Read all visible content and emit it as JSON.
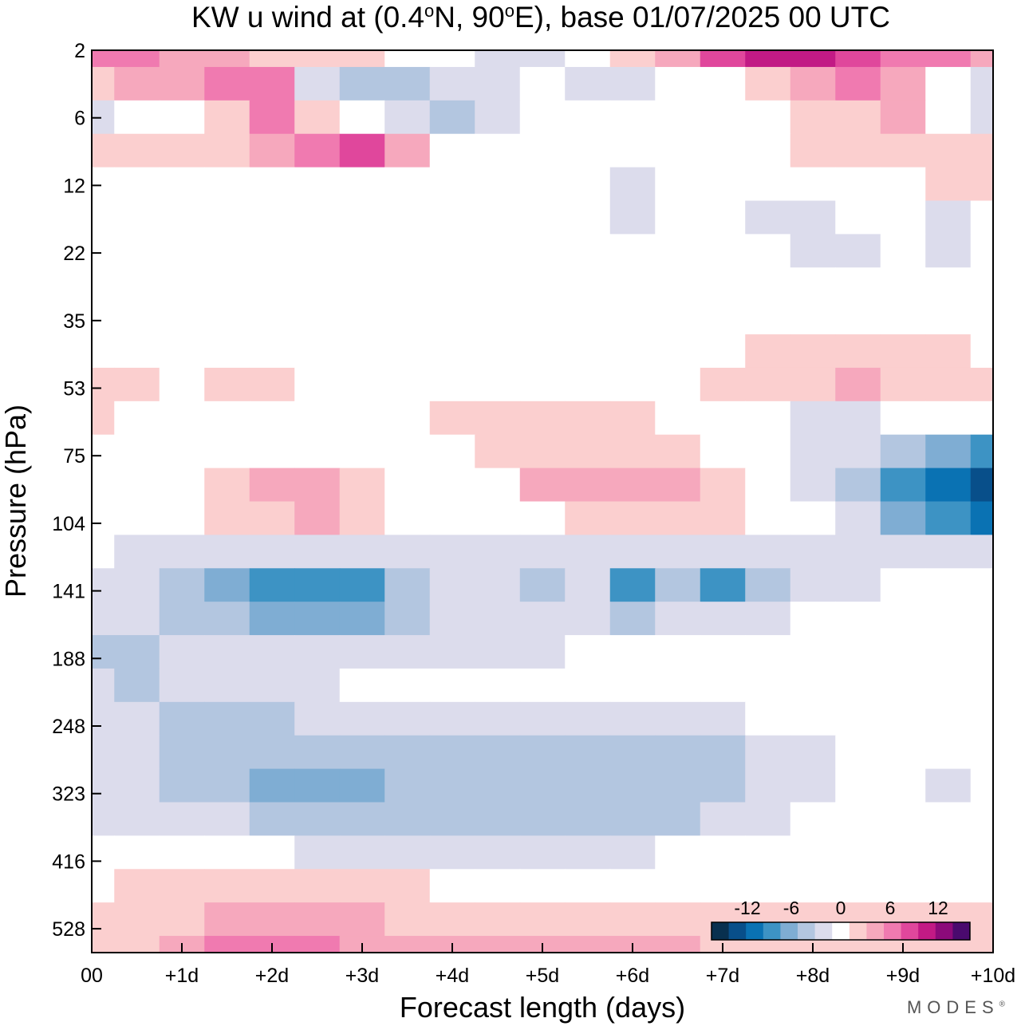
{
  "chart_data": {
    "type": "heatmap",
    "title_main": "KW u wind at (0.4",
    "title_lon": "N, 90",
    "title_tail": "E),  base 01/07/2025  00 UTC",
    "degree_symbol": "o",
    "xlabel": "Forecast length (days)",
    "ylabel": "Pressure (hPa)",
    "x_tick_labels": [
      "00",
      "+1d",
      "+2d",
      "+3d",
      "+4d",
      "+5d",
      "+6d",
      "+7d",
      "+8d",
      "+9d",
      "+10d"
    ],
    "y_tick_labels": [
      "2",
      "6",
      "12",
      "22",
      "35",
      "53",
      "75",
      "104",
      "141",
      "188",
      "248",
      "323",
      "416",
      "528"
    ],
    "xlim": [
      0,
      10
    ],
    "y_axis_note": "pressure decreases upward; tick labels equally spaced",
    "colorbar": {
      "tick_labels": [
        "-12",
        "-6",
        "0",
        "6",
        "12"
      ],
      "colors": [
        "#08304f",
        "#084f8a",
        "#0a72b3",
        "#3d93c4",
        "#7fadd3",
        "#b3c6e0",
        "#dcdcec",
        "#ffffff",
        "#fbcfcf",
        "#f6a8bd",
        "#f07ab0",
        "#e0479c",
        "#c21a85",
        "#8c0a7a",
        "#4a0a6e"
      ]
    },
    "rows_note": "u wind values (m/s) sampled on grid: rows = pressure levels listed, columns = forecast day 0..10 in half-day steps",
    "grid_x": [
      0,
      0.5,
      1,
      1.5,
      2,
      2.5,
      3,
      3.5,
      4,
      4.5,
      5,
      5.5,
      6,
      6.5,
      7,
      7.5,
      8,
      8.5,
      9,
      9.5,
      10
    ],
    "grid_levels": [
      "2",
      "4",
      "6",
      "9",
      "12",
      "17",
      "22",
      "28",
      "35",
      "44",
      "53",
      "64",
      "75",
      "90",
      "104",
      "122",
      "141",
      "164",
      "188",
      "218",
      "248",
      "285",
      "323",
      "370",
      "416",
      "470",
      "528",
      "560"
    ],
    "values": [
      [
        5,
        6,
        4,
        3,
        2,
        2,
        1,
        0,
        -1,
        -2,
        -2,
        -1,
        1,
        4,
        7,
        9,
        9,
        8,
        6,
        5,
        3
      ],
      [
        2,
        3,
        3,
        5,
        6,
        -3,
        -4,
        -5,
        -3,
        -2,
        -1,
        -3,
        -2,
        -1,
        0,
        2,
        4,
        6,
        3,
        -1,
        -2
      ],
      [
        -2,
        -1,
        0,
        2,
        5,
        2,
        -1,
        -3,
        -4,
        -2,
        0,
        -1,
        -1,
        -1,
        -1,
        -1,
        1,
        2,
        3,
        -1,
        -2
      ],
      [
        2,
        2,
        1,
        1,
        3,
        6,
        7,
        3,
        0,
        0,
        0,
        -1,
        -1,
        -1,
        -1,
        -1,
        1,
        2,
        2,
        1,
        1
      ],
      [
        0,
        0,
        0,
        0,
        -1,
        -1,
        0,
        0,
        0,
        0,
        0,
        -1,
        -2,
        -1,
        -1,
        -1,
        -1,
        0,
        0,
        2,
        1
      ],
      [
        0,
        0,
        0,
        -1,
        -1,
        -1,
        0,
        0,
        0,
        0,
        0,
        0,
        -2,
        -1,
        -1,
        -2,
        -2,
        -1,
        -1,
        -2,
        -1
      ],
      [
        0,
        0,
        0,
        0,
        -1,
        0,
        0,
        -1,
        0,
        0,
        0,
        0,
        -1,
        -1,
        -1,
        -1,
        -2,
        -2,
        -1,
        -2,
        -1
      ],
      [
        -1,
        -1,
        0,
        0,
        0,
        0,
        0,
        0,
        0,
        0,
        0,
        0,
        0,
        0,
        0,
        -1,
        -1,
        -1,
        -1,
        -1,
        -1
      ],
      [
        -1,
        -1,
        0,
        0,
        0,
        0,
        0,
        0,
        0,
        0,
        0,
        0,
        0,
        0,
        0,
        0,
        0,
        0,
        0,
        -1,
        -1
      ],
      [
        0,
        0,
        0,
        0,
        0,
        0,
        0,
        0,
        0,
        0,
        0,
        0,
        0,
        0,
        0,
        1,
        1,
        2,
        2,
        1,
        0
      ],
      [
        2,
        1,
        0,
        1,
        1,
        0,
        0,
        0,
        0,
        0,
        0,
        0,
        0,
        0,
        1,
        1,
        2,
        3,
        2,
        1,
        2
      ],
      [
        1,
        0,
        0,
        0,
        0,
        0,
        0,
        0,
        2,
        2,
        1,
        1,
        1,
        0,
        -1,
        -1,
        -2,
        -3,
        -1,
        -1,
        -1
      ],
      [
        -1,
        0,
        0,
        0,
        0,
        -1,
        -1,
        0,
        0,
        1,
        2,
        2,
        2,
        1,
        0,
        -1,
        -2,
        -3,
        -5,
        -6,
        -8
      ],
      [
        -1,
        -1,
        0,
        2,
        3,
        3,
        1,
        0,
        0,
        0,
        3,
        4,
        4,
        3,
        2,
        0,
        -2,
        -5,
        -8,
        -10,
        -12
      ],
      [
        -1,
        -1,
        0,
        2,
        2,
        4,
        2,
        0,
        0,
        0,
        0,
        1,
        1,
        1,
        1,
        0,
        -1,
        -3,
        -6,
        -8,
        -11
      ],
      [
        -1,
        -2,
        -2,
        -3,
        -3,
        -3,
        -3,
        -2,
        -2,
        -2,
        -3,
        -2,
        -3,
        -3,
        -3,
        -2,
        -2,
        -2,
        -2,
        -2,
        -3
      ],
      [
        -3,
        -3,
        -4,
        -6,
        -9,
        -9,
        -8,
        -4,
        -3,
        -3,
        -5,
        -3,
        -8,
        -5,
        -8,
        -4,
        -3,
        -2,
        -1,
        -1,
        -1
      ],
      [
        -3,
        -3,
        -4,
        -5,
        -7,
        -7,
        -6,
        -4,
        -3,
        -3,
        -3,
        -3,
        -4,
        -3,
        -3,
        -3,
        -1,
        0,
        0,
        -1,
        -1
      ],
      [
        -4,
        -4,
        -3,
        -2,
        -2,
        -2,
        -2,
        -2,
        -2,
        -2,
        -2,
        -1,
        -1,
        -1,
        -1,
        -1,
        0,
        0,
        0,
        0,
        -1
      ],
      [
        -3,
        -4,
        -3,
        -2,
        -2,
        -2,
        -1,
        -1,
        0,
        0,
        -1,
        -1,
        -1,
        -1,
        -1,
        -1,
        -1,
        -1,
        -1,
        -1,
        -1
      ],
      [
        -3,
        -3,
        -4,
        -4,
        -4,
        -3,
        -3,
        -3,
        -3,
        -2,
        -2,
        -2,
        -2,
        -2,
        -2,
        -1,
        -1,
        -1,
        -1,
        -1,
        -1
      ],
      [
        -3,
        -3,
        -4,
        -5,
        -5,
        -5,
        -5,
        -4,
        -4,
        -4,
        -4,
        -4,
        -4,
        -4,
        -4,
        -3,
        -2,
        -1,
        -1,
        -1,
        -1
      ],
      [
        -3,
        -3,
        -4,
        -4,
        -6,
        -6,
        -6,
        -4,
        -4,
        -4,
        -4,
        -4,
        -4,
        -4,
        -4,
        -3,
        -2,
        -1,
        -1,
        -2,
        -1
      ],
      [
        -2,
        -2,
        -3,
        -3,
        -4,
        -4,
        -4,
        -4,
        -4,
        -4,
        -4,
        -4,
        -4,
        -4,
        -3,
        -2,
        -1,
        -1,
        -1,
        -1,
        -1
      ],
      [
        0,
        0,
        -1,
        -1,
        -1,
        -2,
        -2,
        -2,
        -2,
        -2,
        -2,
        -2,
        -2,
        -1,
        -1,
        -1,
        0,
        0,
        0,
        0,
        0
      ],
      [
        0,
        1,
        1,
        1,
        1,
        1,
        1,
        1,
        0,
        0,
        0,
        0,
        0,
        0,
        0,
        0,
        0,
        0,
        0,
        0,
        0
      ],
      [
        1,
        1,
        2,
        3,
        3,
        3,
        3,
        2,
        2,
        2,
        2,
        2,
        2,
        2,
        1,
        1,
        1,
        1,
        1,
        1,
        1
      ],
      [
        2,
        2,
        3,
        5,
        5,
        5,
        4,
        3,
        3,
        3,
        3,
        4,
        3,
        3,
        2,
        2,
        1,
        1,
        1,
        1,
        1
      ]
    ]
  },
  "logo_text": "MODES",
  "logo_mark": "®"
}
